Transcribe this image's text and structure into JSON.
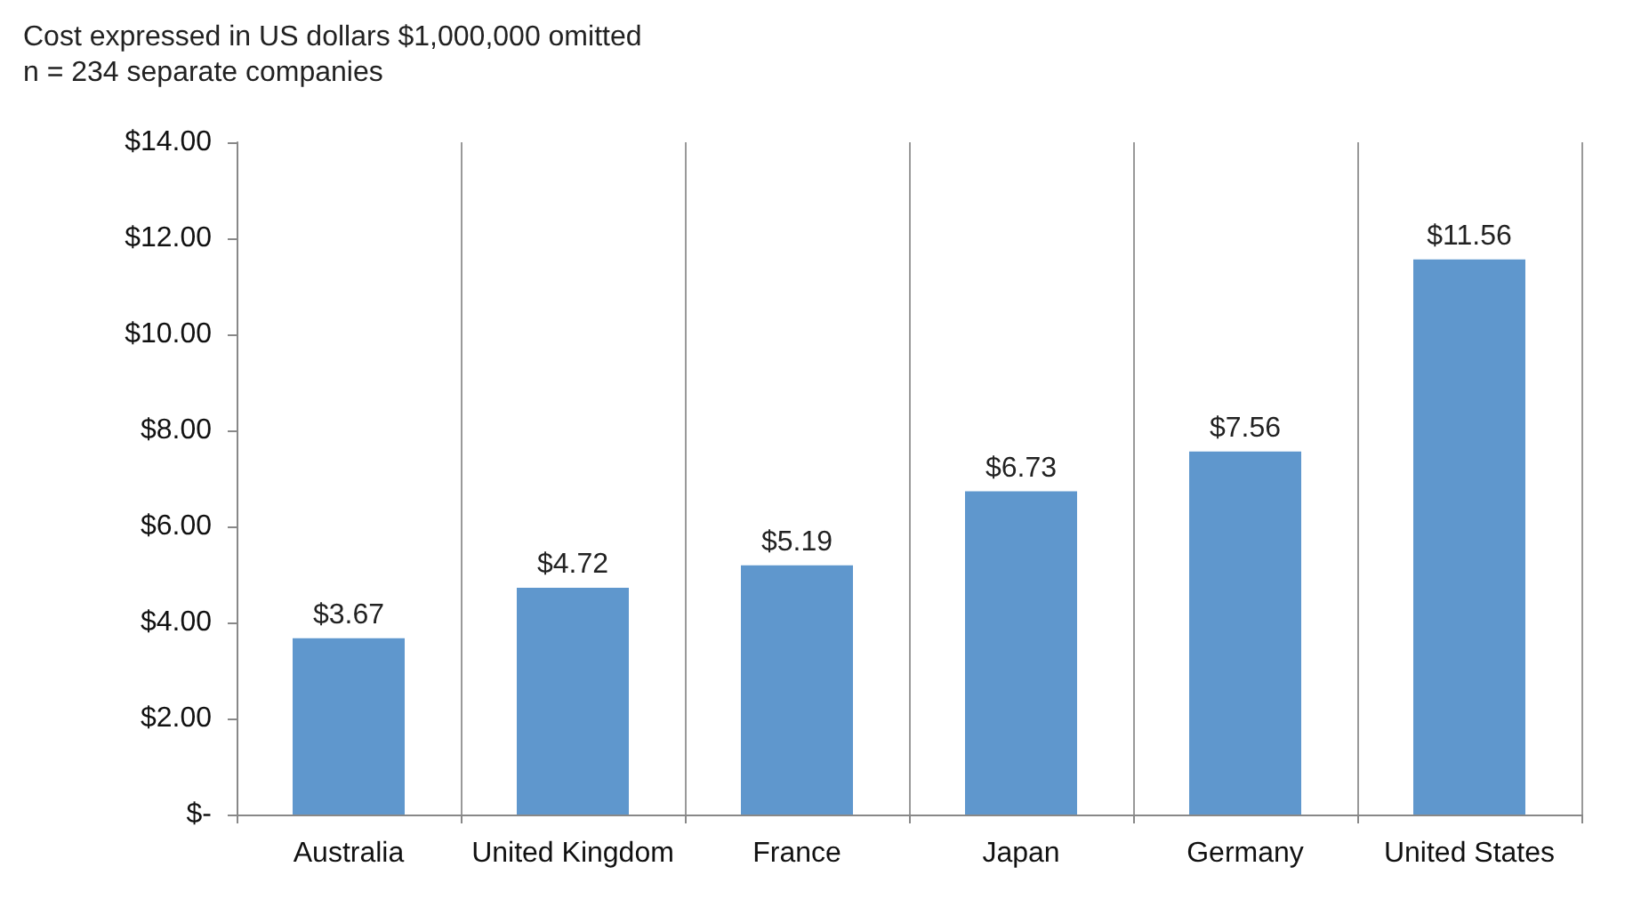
{
  "chart_data": {
    "type": "bar",
    "title": "Cost expressed in US dollars $1,000,000 omitted",
    "subtitle": "n = 234 separate companies",
    "categories": [
      "Australia",
      "United Kingdom",
      "France",
      "Japan",
      "Germany",
      "United States"
    ],
    "values": [
      3.67,
      4.72,
      5.19,
      6.73,
      7.56,
      11.56
    ],
    "value_labels": [
      "$3.67",
      "$4.72",
      "$5.19",
      "$6.73",
      "$7.56",
      "$11.56"
    ],
    "color": "#5f97cd",
    "ylim": [
      0,
      14
    ],
    "yticks": [
      {
        "value": 0,
        "label": "$-"
      },
      {
        "value": 2,
        "label": "$2.00"
      },
      {
        "value": 4,
        "label": "$4.00"
      },
      {
        "value": 6,
        "label": "$6.00"
      },
      {
        "value": 8,
        "label": "$8.00"
      },
      {
        "value": 10,
        "label": "$10.00"
      },
      {
        "value": 12,
        "label": "$12.00"
      },
      {
        "value": 14,
        "label": "$14.00"
      }
    ],
    "grid": "x"
  }
}
